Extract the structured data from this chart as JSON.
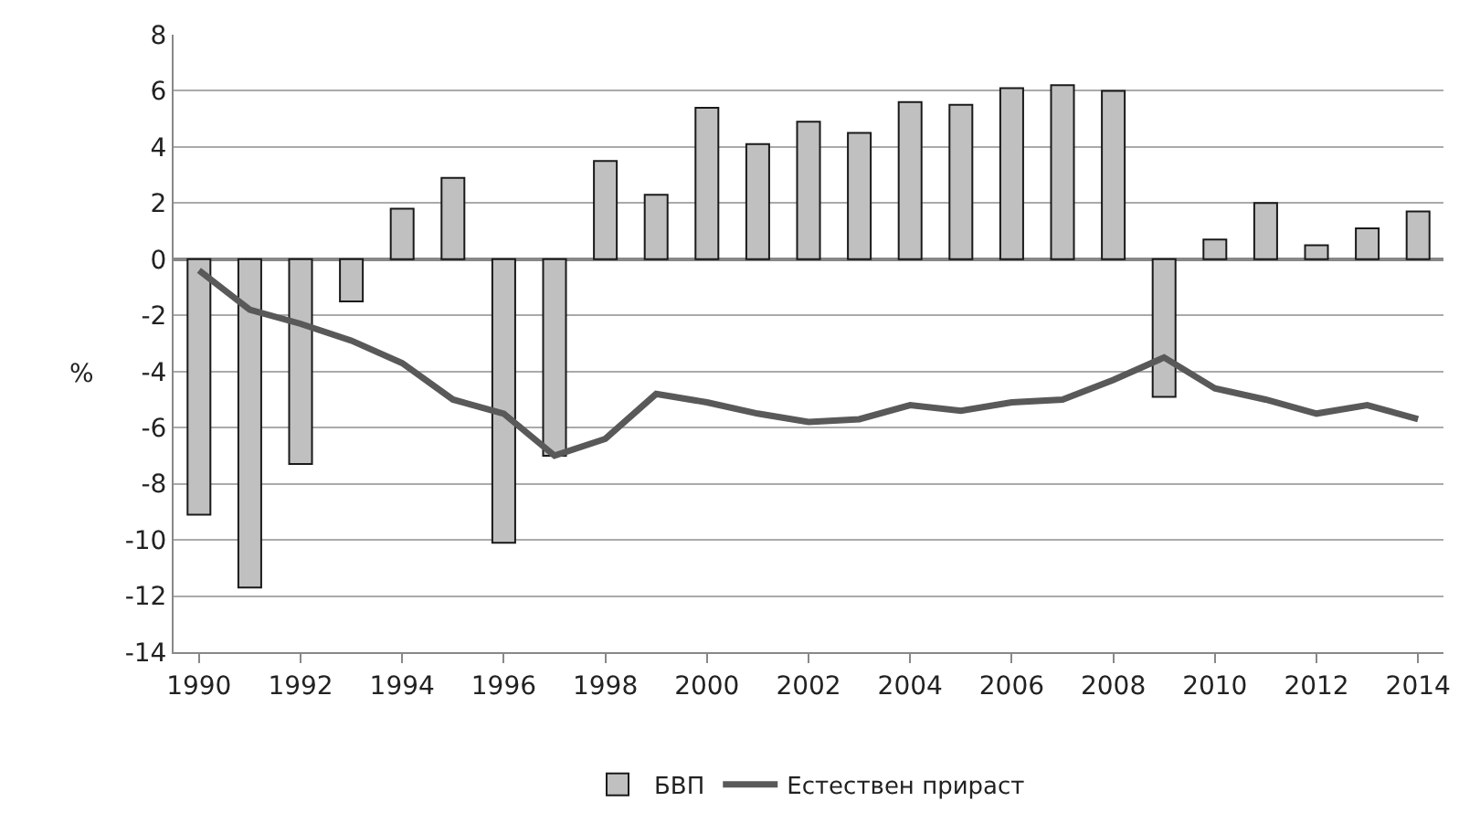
{
  "chart_data": {
    "type": "bar",
    "ylabel": "%",
    "x": [
      1990,
      1991,
      1992,
      1993,
      1994,
      1995,
      1996,
      1997,
      1998,
      1999,
      2000,
      2001,
      2002,
      2003,
      2004,
      2005,
      2006,
      2007,
      2008,
      2009,
      2010,
      2011,
      2012,
      2013,
      2014
    ],
    "series": [
      {
        "name": "БВП",
        "color": "#c0c0c0",
        "values": [
          -9.1,
          -11.7,
          -7.3,
          -1.5,
          1.8,
          2.9,
          -10.1,
          -7.0,
          3.5,
          2.3,
          5.4,
          4.1,
          4.9,
          4.5,
          5.6,
          5.5,
          6.1,
          6.2,
          6.0,
          -4.9,
          0.7,
          2.0,
          0.5,
          1.1,
          1.7
        ]
      },
      {
        "name": "Естествен прираст",
        "type": "line",
        "color": "#595959",
        "values": [
          -0.4,
          -1.8,
          -2.3,
          -2.9,
          -3.7,
          -5.0,
          -5.5,
          -7.0,
          -6.4,
          -4.8,
          -5.1,
          -5.5,
          -5.8,
          -5.7,
          -5.2,
          -5.4,
          -5.1,
          -5.0,
          -4.3,
          -3.5,
          -4.6,
          -5.0,
          -5.5,
          -5.2,
          -5.7
        ]
      }
    ],
    "xlim": [
      1989.5,
      2014.5
    ],
    "xticks": [
      1990,
      1992,
      1994,
      1996,
      1998,
      2000,
      2002,
      2004,
      2006,
      2008,
      2010,
      2012,
      2014
    ],
    "ylim": [
      -14,
      8
    ],
    "yticks": [
      -14,
      -12,
      -10,
      -8,
      -6,
      -4,
      -2,
      0,
      2,
      4,
      6,
      8
    ],
    "grid": "y",
    "legend": "bottom",
    "marker": "none",
    "line_style": "solid"
  }
}
